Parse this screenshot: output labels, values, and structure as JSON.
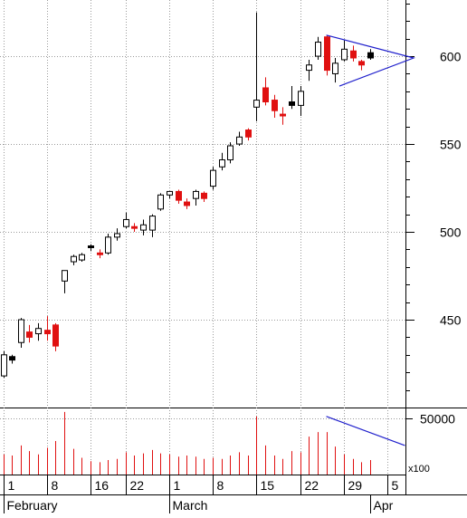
{
  "chart_data": {
    "type": "candlestick",
    "price": {
      "ylim": [
        400,
        632
      ],
      "y_ticks": [
        450,
        500,
        550,
        600
      ],
      "candles": [
        {
          "o": 418,
          "h": 432,
          "l": 417,
          "c": 430,
          "color": "white"
        },
        {
          "o": 427,
          "h": 430,
          "l": 425,
          "c": 429,
          "color": "black"
        },
        {
          "o": 437,
          "h": 451,
          "l": 434,
          "c": 450,
          "color": "white"
        },
        {
          "o": 443,
          "h": 447,
          "l": 437,
          "c": 440,
          "color": "red"
        },
        {
          "o": 442,
          "h": 448,
          "l": 438,
          "c": 445,
          "color": "white"
        },
        {
          "o": 444,
          "h": 452,
          "l": 438,
          "c": 442,
          "color": "red"
        },
        {
          "o": 447,
          "h": 448,
          "l": 432,
          "c": 435,
          "color": "red"
        },
        {
          "o": 472,
          "h": 478,
          "l": 465,
          "c": 478,
          "color": "white"
        },
        {
          "o": 483,
          "h": 487,
          "l": 481,
          "c": 486,
          "color": "white"
        },
        {
          "o": 484,
          "h": 488,
          "l": 483,
          "c": 487,
          "color": "white"
        },
        {
          "o": 491,
          "h": 493,
          "l": 489,
          "c": 492,
          "color": "black"
        },
        {
          "o": 488,
          "h": 490,
          "l": 485,
          "c": 487,
          "color": "red"
        },
        {
          "o": 488,
          "h": 499,
          "l": 487,
          "c": 497,
          "color": "white"
        },
        {
          "o": 497,
          "h": 502,
          "l": 495,
          "c": 499,
          "color": "white"
        },
        {
          "o": 503,
          "h": 511,
          "l": 502,
          "c": 507,
          "color": "white"
        },
        {
          "o": 503,
          "h": 505,
          "l": 500,
          "c": 502,
          "color": "red"
        },
        {
          "o": 501,
          "h": 507,
          "l": 498,
          "c": 504,
          "color": "white"
        },
        {
          "o": 501,
          "h": 510,
          "l": 497,
          "c": 509,
          "color": "white"
        },
        {
          "o": 513,
          "h": 522,
          "l": 512,
          "c": 521,
          "color": "white"
        },
        {
          "o": 521,
          "h": 523,
          "l": 519,
          "c": 523,
          "color": "white"
        },
        {
          "o": 523,
          "h": 524,
          "l": 516,
          "c": 518,
          "color": "red"
        },
        {
          "o": 517,
          "h": 519,
          "l": 513,
          "c": 515,
          "color": "red"
        },
        {
          "o": 519,
          "h": 524,
          "l": 515,
          "c": 523,
          "color": "white"
        },
        {
          "o": 522,
          "h": 523,
          "l": 517,
          "c": 519,
          "color": "red"
        },
        {
          "o": 526,
          "h": 537,
          "l": 524,
          "c": 535,
          "color": "white"
        },
        {
          "o": 537,
          "h": 545,
          "l": 535,
          "c": 541,
          "color": "white"
        },
        {
          "o": 541,
          "h": 551,
          "l": 539,
          "c": 549,
          "color": "white"
        },
        {
          "o": 550,
          "h": 557,
          "l": 549,
          "c": 554,
          "color": "white"
        },
        {
          "o": 558,
          "h": 559,
          "l": 552,
          "c": 554,
          "color": "red"
        },
        {
          "o": 571,
          "h": 625,
          "l": 563,
          "c": 575,
          "color": "white"
        },
        {
          "o": 582,
          "h": 588,
          "l": 572,
          "c": 574,
          "color": "red"
        },
        {
          "o": 575,
          "h": 578,
          "l": 565,
          "c": 569,
          "color": "red"
        },
        {
          "o": 566,
          "h": 571,
          "l": 561,
          "c": 567,
          "color": "red"
        },
        {
          "o": 572,
          "h": 583,
          "l": 570,
          "c": 574,
          "color": "black"
        },
        {
          "o": 572,
          "h": 583,
          "l": 566,
          "c": 580,
          "color": "white"
        },
        {
          "o": 592,
          "h": 598,
          "l": 586,
          "c": 595,
          "color": "white"
        },
        {
          "o": 600,
          "h": 611,
          "l": 598,
          "c": 608,
          "color": "white"
        },
        {
          "o": 611,
          "h": 612,
          "l": 589,
          "c": 592,
          "color": "red"
        },
        {
          "o": 590,
          "h": 599,
          "l": 585,
          "c": 596,
          "color": "white"
        },
        {
          "o": 598,
          "h": 609,
          "l": 597,
          "c": 604,
          "color": "white"
        },
        {
          "o": 603,
          "h": 606,
          "l": 597,
          "c": 599,
          "color": "red"
        },
        {
          "o": 597,
          "h": 598,
          "l": 592,
          "c": 595,
          "color": "red"
        },
        {
          "o": 599,
          "h": 604,
          "l": 598,
          "c": 602,
          "color": "black"
        }
      ],
      "triangle_pattern": {
        "upper": [
          [
            37,
            612
          ],
          [
            47,
            599
          ]
        ],
        "lower": [
          [
            38.5,
            583
          ],
          [
            47,
            599
          ]
        ],
        "color": "#1f1fcc"
      }
    },
    "volume": {
      "ylim": [
        0,
        60000
      ],
      "y_ticks": [
        50000
      ],
      "unit_label": "x100",
      "values": [
        18000,
        17000,
        26000,
        21000,
        18000,
        24000,
        30000,
        56000,
        23000,
        15000,
        12000,
        11000,
        13000,
        14000,
        20000,
        17000,
        19000,
        22000,
        19000,
        18000,
        16000,
        17000,
        16000,
        14000,
        15000,
        14000,
        17000,
        20000,
        17000,
        52000,
        26000,
        17000,
        14000,
        21000,
        20000,
        34000,
        38000,
        38000,
        25000,
        18000,
        14000,
        11000,
        13000
      ],
      "trend_line": {
        "from": [
          37,
          52000
        ],
        "to": [
          46,
          26000
        ],
        "color": "#1f1fcc"
      }
    },
    "x_axis": {
      "day_labels": [
        {
          "index": 0,
          "label": "1"
        },
        {
          "index": 5,
          "label": "8"
        },
        {
          "index": 10,
          "label": "16"
        },
        {
          "index": 14,
          "label": "22"
        },
        {
          "index": 19,
          "label": "1"
        },
        {
          "index": 24,
          "label": "8"
        },
        {
          "index": 29,
          "label": "15"
        },
        {
          "index": 34,
          "label": "22"
        },
        {
          "index": 39,
          "label": "29"
        },
        {
          "index": 44,
          "label": "5"
        }
      ],
      "month_labels": [
        {
          "index": 0,
          "label": "February"
        },
        {
          "index": 19,
          "label": "March"
        },
        {
          "index": 42,
          "label": "Apr"
        }
      ]
    }
  }
}
